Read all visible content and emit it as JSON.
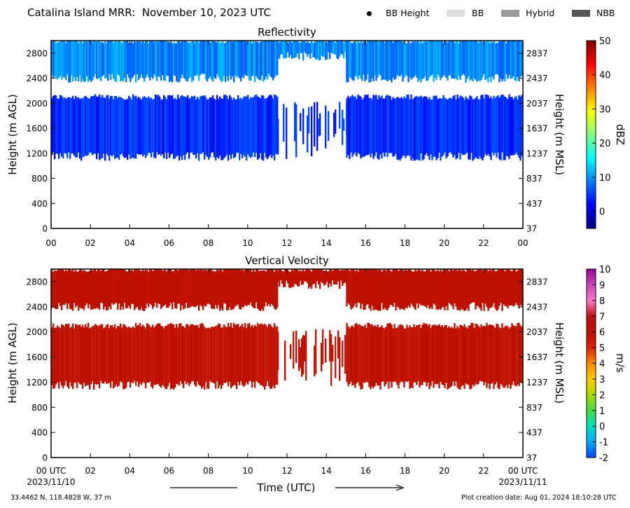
{
  "header": {
    "title": "Catalina Island MRR:  November 10, 2023 UTC"
  },
  "legend": {
    "items": [
      {
        "label": "BB Height",
        "marker": "dot",
        "color": "#000000"
      },
      {
        "label": "BB",
        "marker": "box",
        "color": "#dddddd"
      },
      {
        "label": "Hybrid",
        "marker": "box",
        "color": "#999999"
      },
      {
        "label": "NBB",
        "marker": "box",
        "color": "#555555"
      }
    ]
  },
  "footer": {
    "location": "33.4462 N, 118.4828 W, 37 m",
    "created": "Plot creation date: Aug 01, 2024 18:10:28 UTC"
  },
  "x_axis": {
    "label": "Time (UTC)",
    "tick_labels_top": [
      "00",
      "02",
      "04",
      "06",
      "08",
      "10",
      "12",
      "14",
      "16",
      "18",
      "20",
      "22",
      "00"
    ],
    "tick_labels_bottom": [
      "00 UTC",
      "02",
      "04",
      "06",
      "08",
      "10",
      "12",
      "14",
      "16",
      "18",
      "20",
      "22",
      "00 UTC"
    ],
    "date_start": "2023/11/10",
    "date_end": "2023/11/11",
    "range": [
      0,
      24
    ]
  },
  "chart_data": [
    {
      "type": "heatmap",
      "title": "Reflectivity",
      "ylabel": "Height (m AGL)",
      "ylabel_right": "Height (m MSL)",
      "yticks": [
        "0",
        "400",
        "800",
        "1200",
        "1600",
        "2000",
        "2400",
        "2800"
      ],
      "yticks_right": [
        "37",
        "437",
        "837",
        "1237",
        "1637",
        "2037",
        "2437",
        "2837"
      ],
      "xlim": [
        0,
        24
      ],
      "ylim": [
        0,
        3000
      ],
      "colorbar": {
        "label": "dBZ",
        "ticks": [
          "0",
          "10",
          "20",
          "30",
          "40",
          "50"
        ],
        "range": [
          -5,
          50
        ],
        "colors": [
          "#00007f",
          "#0000ff",
          "#007fff",
          "#00ffff",
          "#7fff7f",
          "#ffff00",
          "#ff7f00",
          "#ff0000",
          "#7f0000"
        ]
      },
      "color_note": "blue (about -5 to 10 dBZ)",
      "echo_layers": [
        {
          "layer": "lower",
          "hours": [
            0,
            11.5
          ],
          "base_m": 1150,
          "top_m": 2100
        },
        {
          "layer": "lower",
          "hours": [
            11.5,
            15
          ],
          "base_m": 1350,
          "top_m": 1900,
          "note": "broken"
        },
        {
          "layer": "lower",
          "hours": [
            15,
            24
          ],
          "base_m": 1150,
          "top_m": 2100
        },
        {
          "layer": "upper",
          "hours": [
            0,
            11.5
          ],
          "base_m": 2400,
          "top_m": 3000
        },
        {
          "layer": "upper",
          "hours": [
            11.5,
            15
          ],
          "base_m": 2750,
          "top_m": 3000
        },
        {
          "layer": "upper",
          "hours": [
            15,
            24
          ],
          "base_m": 2400,
          "top_m": 3000
        }
      ]
    },
    {
      "type": "heatmap",
      "title": "Vertical Velocity",
      "ylabel": "Height (m AGL)",
      "ylabel_right": "Height (m MSL)",
      "yticks": [
        "0",
        "400",
        "800",
        "1200",
        "1600",
        "2000",
        "2400",
        "2800"
      ],
      "yticks_right": [
        "37",
        "437",
        "837",
        "1237",
        "1637",
        "2037",
        "2437",
        "2837"
      ],
      "xlim": [
        0,
        24
      ],
      "ylim": [
        0,
        3000
      ],
      "colorbar": {
        "label": "m/s",
        "ticks": [
          "-2",
          "-1",
          "0",
          "1",
          "2",
          "3",
          "4",
          "5",
          "6",
          "7",
          "8",
          "9",
          "10"
        ],
        "range": [
          -2,
          10
        ],
        "colors": [
          "#0044ff",
          "#00aaff",
          "#00e0c0",
          "#44dd44",
          "#aadd00",
          "#ffcc00",
          "#ff8800",
          "#dd2200",
          "#bb1100",
          "#c01010",
          "#ff77cc",
          "#cc44bb",
          "#990099"
        ]
      },
      "color_note": "dark red (about 6 m/s)",
      "echo_layers": [
        {
          "layer": "lower",
          "hours": [
            0,
            11.5
          ],
          "base_m": 1150,
          "top_m": 2100
        },
        {
          "layer": "lower",
          "hours": [
            11.5,
            15
          ],
          "base_m": 1350,
          "top_m": 1900,
          "note": "broken"
        },
        {
          "layer": "lower",
          "hours": [
            15,
            24
          ],
          "base_m": 1150,
          "top_m": 2100
        },
        {
          "layer": "upper",
          "hours": [
            0,
            11.5
          ],
          "base_m": 2400,
          "top_m": 3000
        },
        {
          "layer": "upper",
          "hours": [
            11.5,
            15
          ],
          "base_m": 2750,
          "top_m": 3000
        },
        {
          "layer": "upper",
          "hours": [
            15,
            24
          ],
          "base_m": 2400,
          "top_m": 3000
        }
      ]
    }
  ]
}
